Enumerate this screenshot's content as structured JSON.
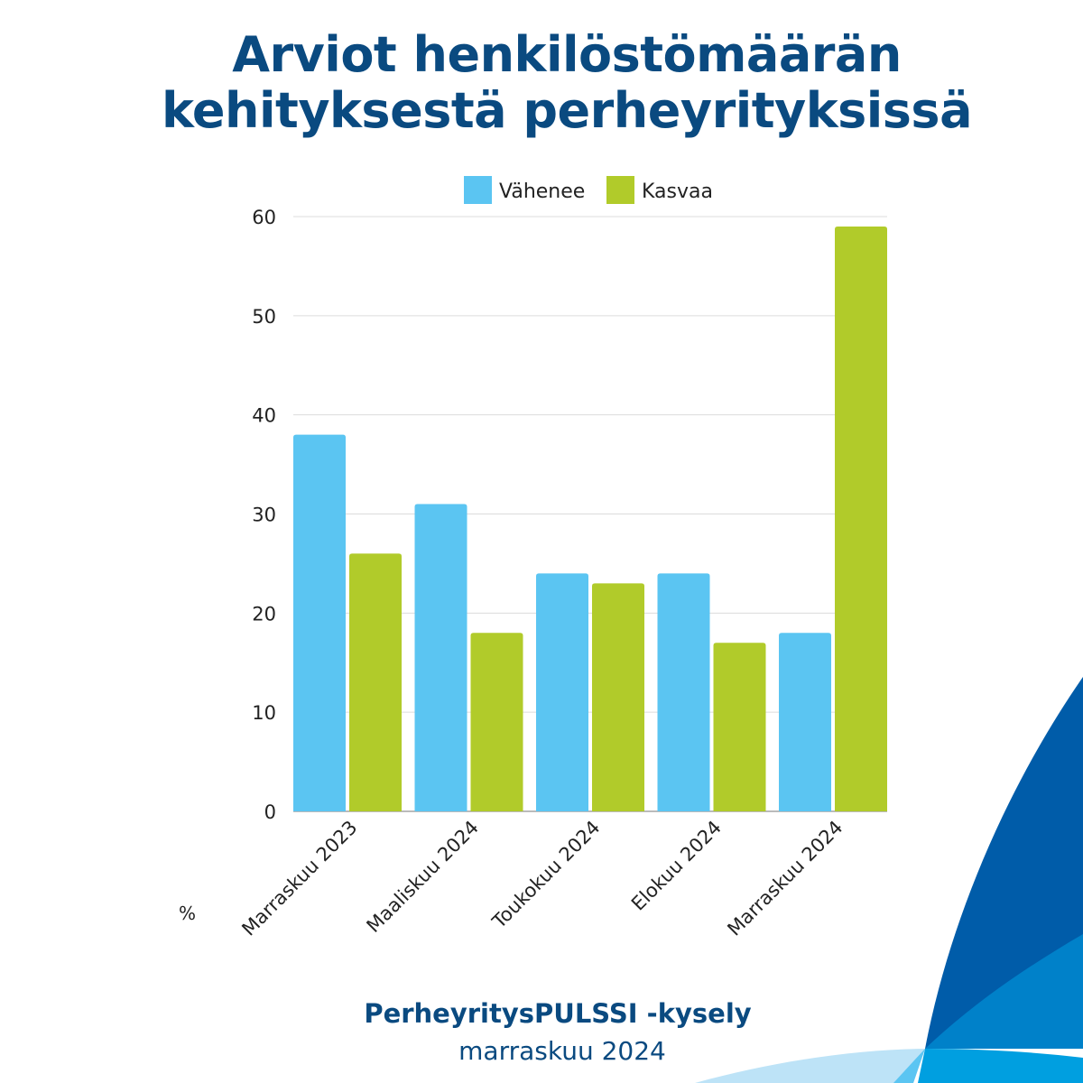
{
  "title_line1": "Arviot henkilöstömäärän",
  "title_line2": "kehityksestä perheyrityksissä",
  "footer": {
    "survey": "PerheyritysPULSSI -kysely",
    "date": "marraskuu 2024"
  },
  "colors": {
    "Vähenee": "#5bc5f2",
    "Kasvaa": "#b1cb2a",
    "title": "#0a4a80"
  },
  "chart_data": {
    "type": "bar",
    "title": "Arviot henkilöstömäärän kehityksestä perheyrityksissä",
    "categories": [
      "Marraskuu 2023",
      "Maaliskuu 2024",
      "Toukokuu 2024",
      "Elokuu 2024",
      "Marraskuu 2024"
    ],
    "series": [
      {
        "name": "Vähenee",
        "values": [
          38,
          31,
          24,
          24,
          18
        ]
      },
      {
        "name": "Kasvaa",
        "values": [
          26,
          18,
          23,
          17,
          59
        ]
      }
    ],
    "ylabel": "%",
    "xlabel": "",
    "ylim": [
      0,
      60
    ],
    "yticks": [
      "0",
      "10",
      "20",
      "30",
      "40",
      "50",
      "60"
    ],
    "grid": true,
    "legend": "top-center"
  }
}
